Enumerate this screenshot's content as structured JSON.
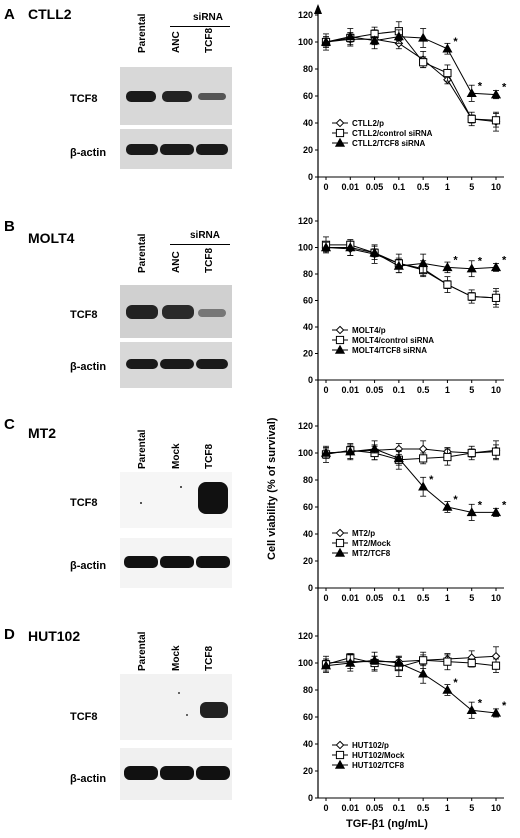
{
  "panels": [
    {
      "letter": "A",
      "cell_line": "CTLL2",
      "group_label": "siRNA",
      "lanes": [
        "Parental",
        "ANC",
        "TCF8"
      ],
      "blot_rows": [
        "TCF8",
        "β-actin"
      ],
      "band_intensity": {
        "TCF8": [
          0.9,
          0.85,
          0.45
        ],
        "β-actin": [
          0.9,
          0.9,
          0.9
        ]
      }
    },
    {
      "letter": "B",
      "cell_line": "MOLT4",
      "group_label": "siRNA",
      "lanes": [
        "Parental",
        "ANC",
        "TCF8"
      ],
      "blot_rows": [
        "TCF8",
        "β-actin"
      ],
      "band_intensity": {
        "TCF8": [
          0.85,
          0.85,
          0.35
        ],
        "β-actin": [
          0.9,
          0.9,
          0.9
        ]
      }
    },
    {
      "letter": "C",
      "cell_line": "MT2",
      "group_label": "",
      "lanes": [
        "Parental",
        "Mock",
        "TCF8"
      ],
      "blot_rows": [
        "TCF8",
        "β-actin"
      ],
      "band_intensity": {
        "TCF8": [
          0.02,
          0.02,
          0.95
        ],
        "β-actin": [
          0.9,
          0.9,
          0.9
        ]
      }
    },
    {
      "letter": "D",
      "cell_line": "HUT102",
      "group_label": "",
      "lanes": [
        "Parental",
        "Mock",
        "TCF8"
      ],
      "blot_rows": [
        "TCF8",
        "β-actin"
      ],
      "band_intensity": {
        "TCF8": [
          0.02,
          0.05,
          0.85
        ],
        "β-actin": [
          0.9,
          0.9,
          0.9
        ]
      }
    }
  ],
  "shared_ylabel": "Cell viability (% of survival)",
  "shared_xlabel": "TGF-β1 (ng/mL)",
  "chart_data": [
    {
      "type": "line",
      "x": [
        "0",
        "0.01",
        "0.05",
        "0.1",
        "0.5",
        "1",
        "5",
        "10"
      ],
      "ylim": [
        0,
        120
      ],
      "yticks": [
        0,
        20,
        40,
        60,
        80,
        100,
        120
      ],
      "legend_position": "bottom-left",
      "series": [
        {
          "name": "CTLL2/p",
          "marker": "diamond",
          "values": [
            100,
            102,
            102,
            99,
            87,
            72,
            43,
            41
          ]
        },
        {
          "name": "CTLL2/control siRNA",
          "marker": "square",
          "values": [
            100,
            103,
            106,
            108,
            85,
            77,
            43,
            42
          ]
        },
        {
          "name": "CTLL2/TCF8 siRNA",
          "marker": "triangle",
          "values": [
            100,
            104,
            101,
            104,
            103,
            95,
            62,
            61
          ]
        }
      ],
      "significance_marks": [
        "*",
        "*",
        "*"
      ]
    },
    {
      "type": "line",
      "x": [
        "0",
        "0.01",
        "0.05",
        "0.1",
        "0.5",
        "1",
        "5",
        "10"
      ],
      "ylim": [
        0,
        120
      ],
      "yticks": [
        0,
        20,
        40,
        60,
        80,
        100,
        120
      ],
      "legend_position": "bottom-left",
      "series": [
        {
          "name": "MOLT4/p",
          "marker": "diamond",
          "values": [
            100,
            99,
            95,
            88,
            84,
            72,
            63,
            62
          ]
        },
        {
          "name": "MOLT4/control siRNA",
          "marker": "square",
          "values": [
            102,
            102,
            96,
            88,
            83,
            72,
            63,
            62
          ]
        },
        {
          "name": "MOLT4/TCF8 siRNA",
          "marker": "triangle",
          "values": [
            100,
            100,
            96,
            86,
            88,
            85,
            84,
            85
          ]
        }
      ],
      "significance_marks": [
        "*",
        "*",
        "*"
      ]
    },
    {
      "type": "line",
      "x": [
        "0",
        "0.01",
        "0.05",
        "0.1",
        "0.5",
        "1",
        "5",
        "10"
      ],
      "ylim": [
        0,
        120
      ],
      "yticks": [
        0,
        20,
        40,
        60,
        80,
        100,
        120
      ],
      "legend_position": "bottom-left",
      "series": [
        {
          "name": "MT2/p",
          "marker": "diamond",
          "values": [
            100,
            101,
            102,
            103,
            103,
            101,
            100,
            102
          ]
        },
        {
          "name": "MT2/Mock",
          "marker": "square",
          "values": [
            99,
            102,
            100,
            95,
            96,
            97,
            100,
            101
          ]
        },
        {
          "name": "MT2/TCF8",
          "marker": "triangle",
          "values": [
            100,
            101,
            103,
            96,
            75,
            60,
            56,
            56
          ]
        }
      ],
      "significance_marks": [
        "*",
        "*",
        "*",
        "*"
      ]
    },
    {
      "type": "line",
      "x": [
        "0",
        "0.01",
        "0.05",
        "0.1",
        "0.5",
        "1",
        "5",
        "10"
      ],
      "ylim": [
        0,
        120
      ],
      "yticks": [
        0,
        20,
        40,
        60,
        80,
        100,
        120
      ],
      "legend_position": "bottom-left",
      "series": [
        {
          "name": "HUT102/p",
          "marker": "diamond",
          "values": [
            100,
            101,
            101,
            101,
            102,
            103,
            104,
            105
          ]
        },
        {
          "name": "HUT102/Mock",
          "marker": "square",
          "values": [
            99,
            104,
            100,
            97,
            102,
            101,
            100,
            98
          ]
        },
        {
          "name": "HUT102/TCF8",
          "marker": "triangle",
          "values": [
            98,
            100,
            102,
            100,
            92,
            80,
            65,
            63
          ]
        }
      ],
      "significance_marks": [
        "*",
        "*",
        "*"
      ]
    }
  ]
}
